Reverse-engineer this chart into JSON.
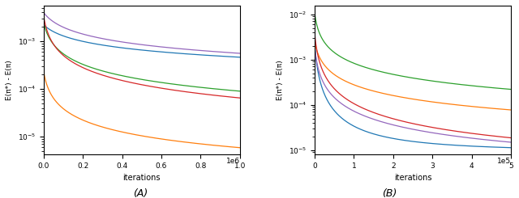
{
  "figsize": [
    6.4,
    2.45
  ],
  "dpi": 100,
  "panel_A": {
    "xlabel": "iterations",
    "ylabel": "E(π*) - E(π)",
    "xlim": [
      0,
      1000000
    ],
    "title": "(A)",
    "line_colors": [
      "#1f77b4",
      "#ff7f0e",
      "#2ca02c",
      "#d62728",
      "#9467bd"
    ]
  },
  "panel_B": {
    "xlabel": "iterations",
    "ylabel": "E(π*) - E(π)",
    "xlim": [
      0,
      500000
    ],
    "title": "(B)",
    "line_colors": [
      "#1f77b4",
      "#ff7f0e",
      "#2ca02c",
      "#d62728",
      "#9467bd"
    ]
  }
}
